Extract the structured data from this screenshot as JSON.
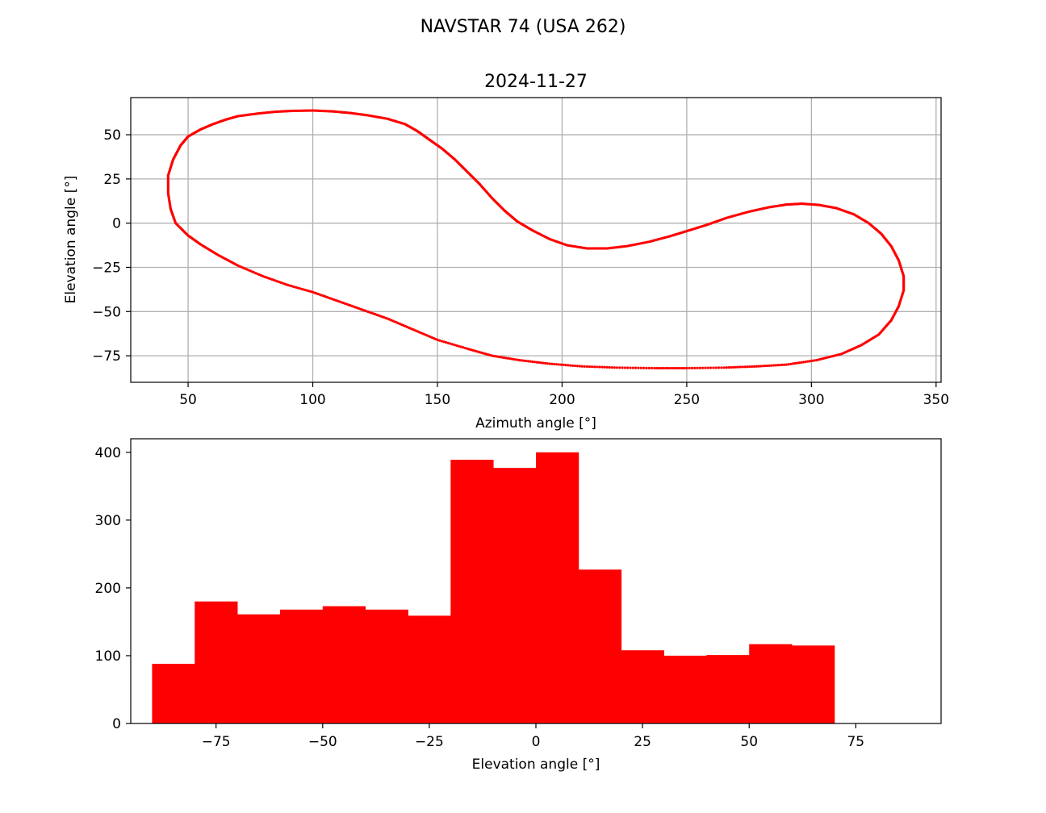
{
  "figure": {
    "suptitle": "NAVSTAR 74 (USA 262)"
  },
  "chart_data": [
    {
      "type": "scatter",
      "title": "2024-11-27",
      "xlabel": "Azimuth angle [°]",
      "ylabel": "Elevation angle [°]",
      "xlim": [
        27,
        352
      ],
      "ylim": [
        -90,
        71
      ],
      "xticks": [
        50,
        100,
        150,
        200,
        250,
        300,
        350
      ],
      "yticks": [
        -75,
        -50,
        -25,
        0,
        25,
        50
      ],
      "grid": true,
      "color": "#ff0000",
      "series": [
        {
          "points": [
            [
              42,
              27
            ],
            [
              44,
              36
            ],
            [
              47,
              44
            ],
            [
              50,
              49
            ],
            [
              55,
              53
            ],
            [
              60,
              56
            ],
            [
              65,
              58.5
            ],
            [
              70,
              60.5
            ],
            [
              78,
              62
            ],
            [
              85,
              63
            ],
            [
              92,
              63.5
            ],
            [
              100,
              63.7
            ],
            [
              108,
              63.2
            ],
            [
              115,
              62.3
            ],
            [
              122,
              61
            ],
            [
              130,
              59
            ],
            [
              137,
              56
            ],
            [
              142,
              52
            ],
            [
              147,
              47
            ],
            [
              152,
              42
            ],
            [
              157,
              36
            ],
            [
              162,
              29
            ],
            [
              167,
              22
            ],
            [
              172,
              14
            ],
            [
              177,
              7
            ],
            [
              182,
              1
            ],
            [
              188,
              -4
            ],
            [
              195,
              -9
            ],
            [
              202,
              -12.5
            ],
            [
              210,
              -14.3
            ],
            [
              218,
              -14.3
            ],
            [
              226,
              -13
            ],
            [
              235,
              -10.5
            ],
            [
              243,
              -7.5
            ],
            [
              250,
              -4.5
            ],
            [
              258,
              -1
            ],
            [
              266,
              3
            ],
            [
              275,
              6.5
            ],
            [
              283,
              9
            ],
            [
              290,
              10.5
            ],
            [
              296,
              11
            ],
            [
              303,
              10.3
            ],
            [
              310,
              8.5
            ],
            [
              317,
              5
            ],
            [
              323,
              0
            ],
            [
              328,
              -6
            ],
            [
              332,
              -13
            ],
            [
              335,
              -21
            ],
            [
              337,
              -30
            ],
            [
              337,
              -38
            ],
            [
              335,
              -47
            ],
            [
              332,
              -55
            ],
            [
              327,
              -63
            ],
            [
              320,
              -69
            ],
            [
              312,
              -74
            ],
            [
              302,
              -77.5
            ],
            [
              290,
              -80
            ],
            [
              278,
              -81
            ],
            [
              265,
              -81.7
            ],
            [
              250,
              -82
            ],
            [
              237,
              -82
            ],
            [
              222,
              -81.7
            ],
            [
              208,
              -81
            ],
            [
              195,
              -79.5
            ],
            [
              183,
              -77.5
            ],
            [
              172,
              -75
            ],
            [
              162,
              -71
            ],
            [
              150,
              -66
            ],
            [
              140,
              -60
            ],
            [
              130,
              -54
            ],
            [
              120,
              -49
            ],
            [
              110,
              -44
            ],
            [
              100,
              -39
            ],
            [
              90,
              -35
            ],
            [
              80,
              -30
            ],
            [
              70,
              -24
            ],
            [
              62,
              -18
            ],
            [
              55,
              -12
            ],
            [
              50,
              -7
            ],
            [
              45,
              0
            ],
            [
              43,
              8
            ],
            [
              42,
              17
            ],
            [
              42,
              27
            ]
          ]
        }
      ]
    },
    {
      "type": "bar",
      "title": "",
      "xlabel": "Elevation angle [°]",
      "ylabel": "",
      "xlim": [
        -95,
        95
      ],
      "ylim": [
        0,
        420
      ],
      "xticks": [
        -75,
        -50,
        -25,
        0,
        25,
        50,
        75
      ],
      "xtick_labels": [
        "−75",
        "−50",
        "−25",
        "0",
        "25",
        "50",
        "75"
      ],
      "yticks": [
        0,
        100,
        200,
        300,
        400
      ],
      "grid": false,
      "color": "#ff0000",
      "bins": [
        [
          -90,
          -80,
          88
        ],
        [
          -80,
          -70,
          180
        ],
        [
          -70,
          -60,
          161
        ],
        [
          -60,
          -50,
          168
        ],
        [
          -50,
          -40,
          173
        ],
        [
          -40,
          -30,
          168
        ],
        [
          -30,
          -20,
          159
        ],
        [
          -20,
          -10,
          389
        ],
        [
          -10,
          0,
          377
        ],
        [
          0,
          10,
          400
        ],
        [
          10,
          20,
          227
        ],
        [
          20,
          30,
          108
        ],
        [
          30,
          40,
          100
        ],
        [
          40,
          50,
          101
        ],
        [
          50,
          60,
          117
        ],
        [
          60,
          70,
          115
        ]
      ]
    }
  ]
}
